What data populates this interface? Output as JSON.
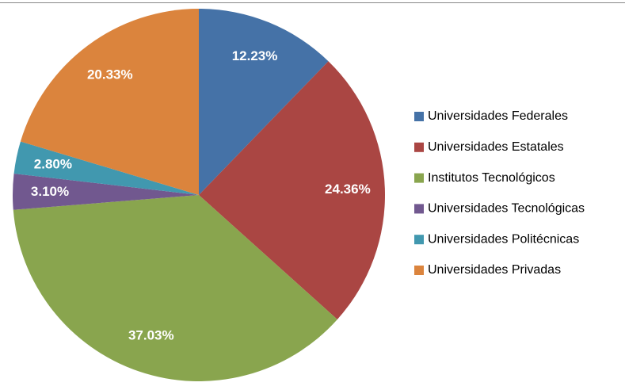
{
  "chart_data": {
    "type": "pie",
    "categories": [
      "Universidades Federales",
      "Universidades Estatales",
      "Institutos Tecnológicos",
      "Universidades Tecnológicas",
      "Universidades Politécnicas",
      "Universidades Privadas"
    ],
    "values": [
      12.23,
      24.36,
      37.03,
      3.1,
      2.8,
      20.33
    ],
    "value_labels": [
      "12.23%",
      "24.36%",
      "37.03%",
      "3.10%",
      "2.80%",
      "20.33%"
    ],
    "colors": [
      "#4572a7",
      "#aa4643",
      "#89a54e",
      "#71588f",
      "#4198af",
      "#db843d"
    ],
    "legend": "right"
  }
}
